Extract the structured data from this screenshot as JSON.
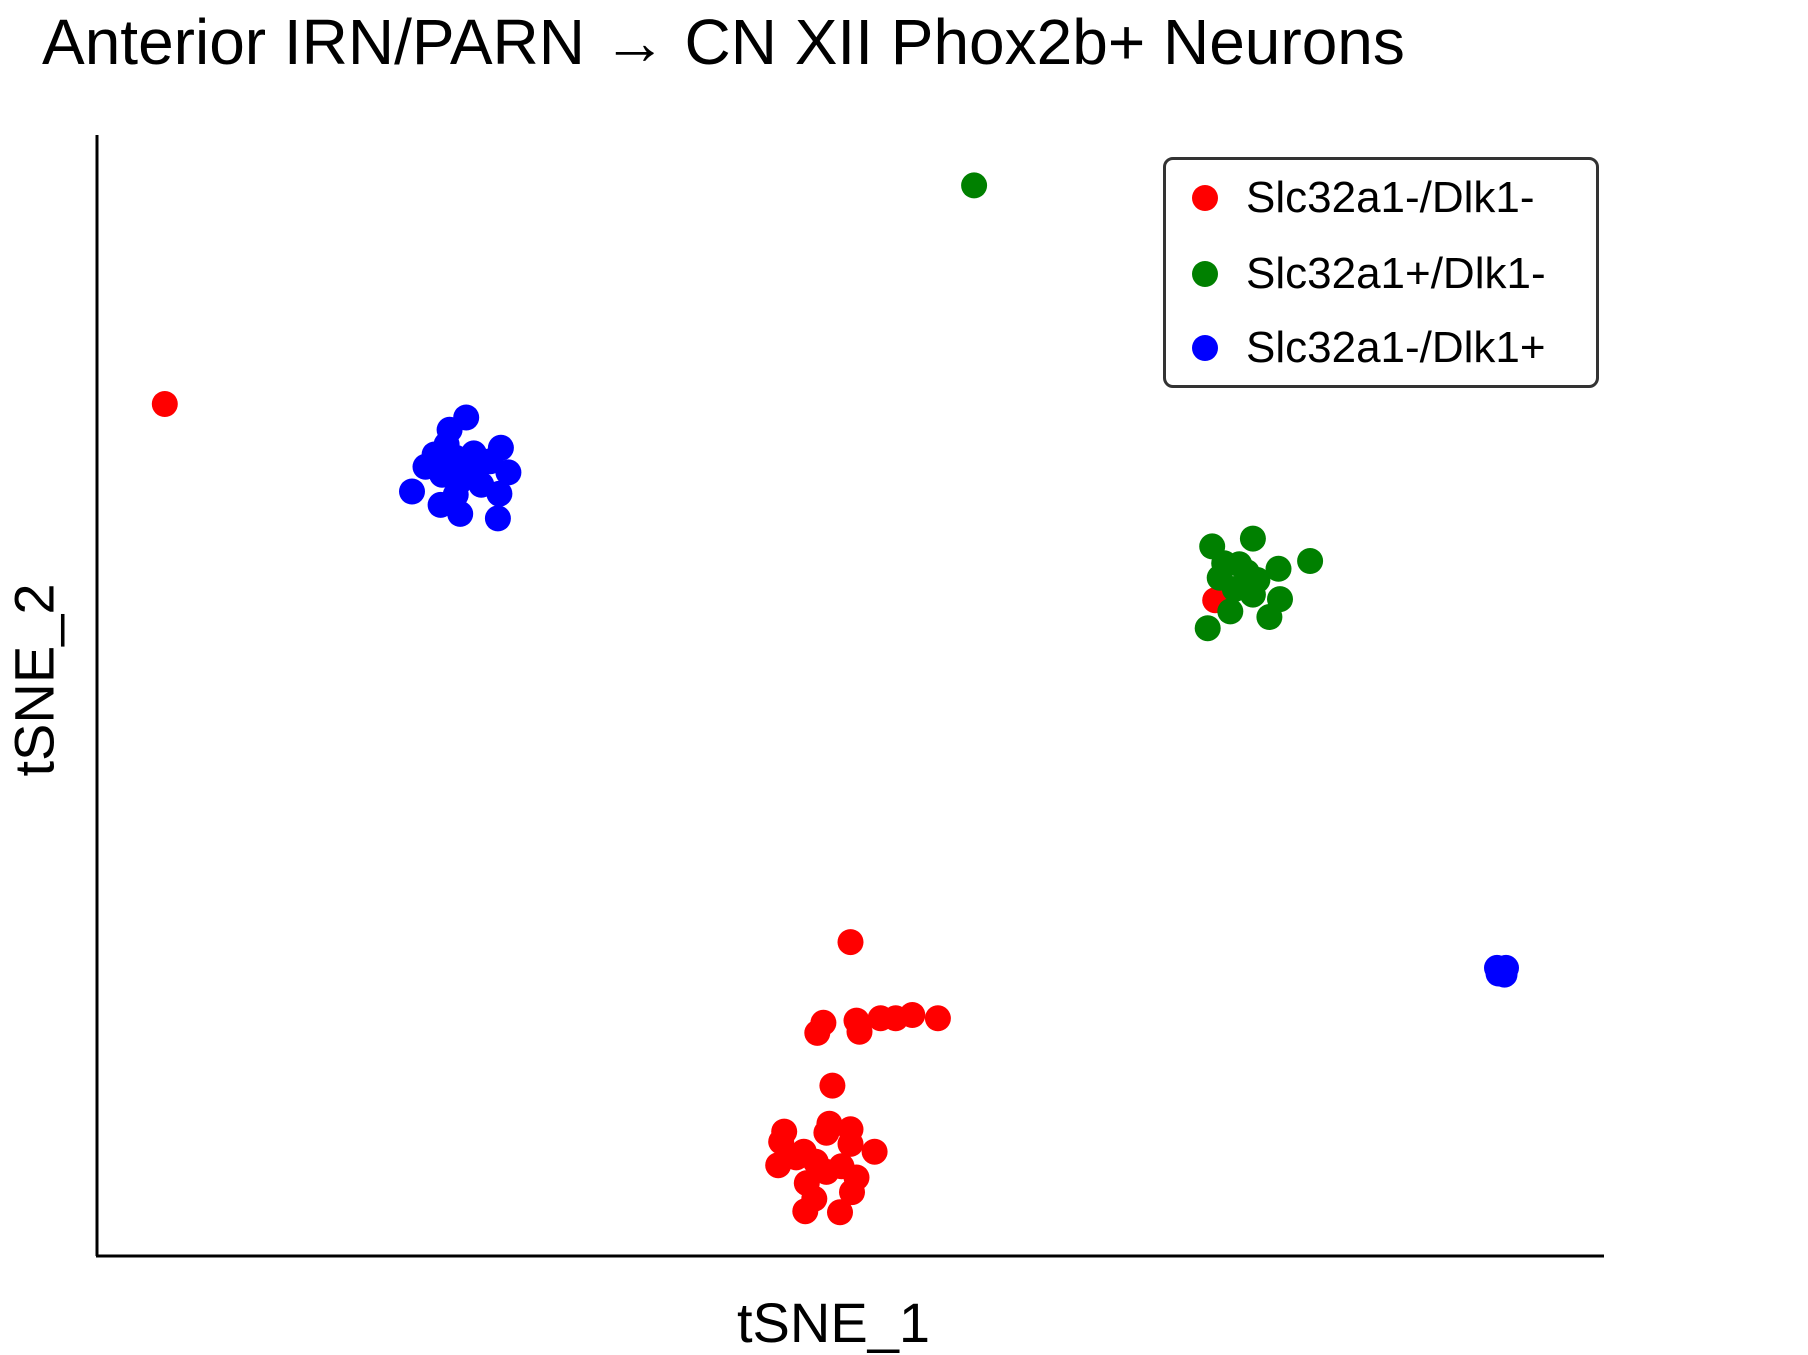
{
  "chart_data": {
    "type": "scatter",
    "title": "Anterior IRN/PARN → CN XII Phox2b+ Neurons",
    "xlabel": "tSNE_1",
    "ylabel": "tSNE_2",
    "xlim": [
      0,
      100
    ],
    "ylim": [
      0,
      100
    ],
    "grid": false,
    "legend_position": "top-right",
    "series": [
      {
        "name": "Slc32a1-/Dlk1-",
        "color": "#ff0000",
        "points": [
          [
            4.5,
            76.0
          ],
          [
            74.2,
            58.5
          ],
          [
            50.0,
            28.0
          ],
          [
            50.4,
            21.0
          ],
          [
            48.2,
            20.8
          ],
          [
            47.8,
            19.9
          ],
          [
            50.6,
            20.0
          ],
          [
            52.0,
            21.2
          ],
          [
            53.0,
            21.2
          ],
          [
            54.1,
            21.5
          ],
          [
            55.8,
            21.2
          ],
          [
            48.8,
            15.2
          ],
          [
            48.4,
            11.0
          ],
          [
            50.0,
            11.3
          ],
          [
            48.6,
            11.8
          ],
          [
            45.6,
            11.1
          ],
          [
            46.9,
            9.3
          ],
          [
            50.0,
            10.0
          ],
          [
            45.2,
            8.1
          ],
          [
            47.7,
            8.4
          ],
          [
            49.4,
            8.0
          ],
          [
            48.4,
            7.5
          ],
          [
            51.6,
            9.3
          ],
          [
            47.1,
            6.5
          ],
          [
            50.4,
            7.0
          ],
          [
            45.4,
            10.2
          ],
          [
            47.6,
            5.1
          ],
          [
            50.1,
            5.7
          ],
          [
            49.3,
            3.9
          ],
          [
            47.0,
            4.0
          ],
          [
            46.4,
            8.8
          ]
        ]
      },
      {
        "name": "Slc32a1+/Dlk1-",
        "color": "#008000",
        "points": [
          [
            58.2,
            95.5
          ],
          [
            74.0,
            63.3
          ],
          [
            76.7,
            64.0
          ],
          [
            74.5,
            60.5
          ],
          [
            75.8,
            61.7
          ],
          [
            78.4,
            61.3
          ],
          [
            76.7,
            59.0
          ],
          [
            75.2,
            57.5
          ],
          [
            77.8,
            57.0
          ],
          [
            78.5,
            58.6
          ],
          [
            76.3,
            61.0
          ],
          [
            77.0,
            60.3
          ],
          [
            75.5,
            59.5
          ],
          [
            80.5,
            62.0
          ],
          [
            73.7,
            56.0
          ],
          [
            74.8,
            61.8
          ]
        ]
      },
      {
        "name": "Slc32a1-/Dlk1+",
        "color": "#0000ff",
        "points": [
          [
            23.4,
            73.7
          ],
          [
            24.5,
            74.8
          ],
          [
            21.8,
            70.4
          ],
          [
            23.8,
            71.2
          ],
          [
            23.2,
            72.4
          ],
          [
            25.0,
            71.6
          ],
          [
            26.8,
            72.1
          ],
          [
            26.1,
            70.9
          ],
          [
            22.9,
            69.7
          ],
          [
            24.8,
            70.2
          ],
          [
            25.5,
            68.8
          ],
          [
            23.8,
            67.9
          ],
          [
            26.7,
            68.0
          ],
          [
            20.9,
            68.2
          ],
          [
            27.3,
            69.9
          ],
          [
            24.1,
            66.2
          ],
          [
            26.6,
            65.8
          ],
          [
            22.4,
            71.5
          ],
          [
            24.0,
            69.0
          ],
          [
            22.8,
            67.0
          ],
          [
            92.9,
            25.7
          ],
          [
            93.4,
            25.1
          ],
          [
            93.2,
            25.6
          ],
          [
            93.0,
            25.2
          ],
          [
            93.5,
            25.7
          ]
        ]
      }
    ]
  }
}
